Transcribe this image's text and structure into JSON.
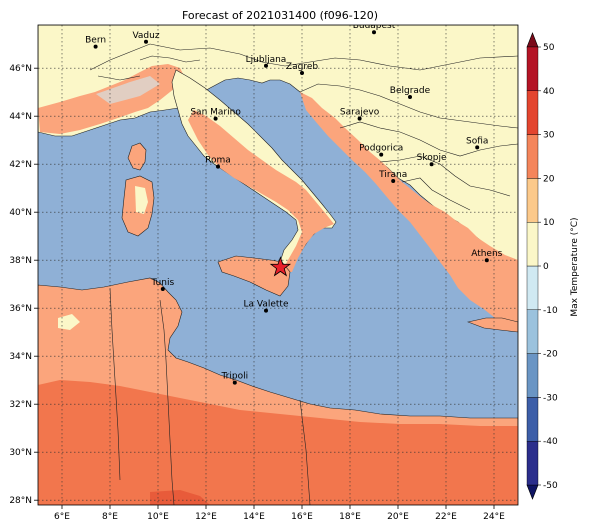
{
  "title": "Forecast of 2021031400 (f096-120)",
  "map": {
    "lon_range": [
      5,
      25
    ],
    "lat_range": [
      27.8,
      47.8
    ],
    "gridlines": true,
    "lon_ticks": [
      "6°E",
      "8°E",
      "10°E",
      "12°E",
      "14°E",
      "16°E",
      "18°E",
      "20°E",
      "22°E",
      "24°E"
    ],
    "lat_ticks": [
      "28°N",
      "30°N",
      "32°N",
      "34°N",
      "36°N",
      "38°N",
      "40°N",
      "42°N",
      "44°N",
      "46°N"
    ],
    "cities": [
      {
        "name": "Bern",
        "lon": 7.4,
        "lat": 46.9
      },
      {
        "name": "Vaduz",
        "lon": 9.5,
        "lat": 47.1
      },
      {
        "name": "Budapest",
        "lon": 19.0,
        "lat": 47.5
      },
      {
        "name": "Ljubljana",
        "lon": 14.5,
        "lat": 46.1
      },
      {
        "name": "Zagreb",
        "lon": 16.0,
        "lat": 45.8
      },
      {
        "name": "San Marino",
        "lon": 12.4,
        "lat": 43.9
      },
      {
        "name": "Belgrade",
        "lon": 20.5,
        "lat": 44.8
      },
      {
        "name": "Sarajevo",
        "lon": 18.4,
        "lat": 43.9
      },
      {
        "name": "Roma",
        "lon": 12.5,
        "lat": 41.9
      },
      {
        "name": "Podgorica",
        "lon": 19.3,
        "lat": 42.4
      },
      {
        "name": "Sofia",
        "lon": 23.3,
        "lat": 42.7
      },
      {
        "name": "Skopje",
        "lon": 21.4,
        "lat": 42.0
      },
      {
        "name": "Tirana",
        "lon": 19.8,
        "lat": 41.3
      },
      {
        "name": "Athens",
        "lon": 23.7,
        "lat": 38.0
      },
      {
        "name": "Tunis",
        "lon": 10.2,
        "lat": 36.8
      },
      {
        "name": "La Valette",
        "lon": 14.5,
        "lat": 35.9
      },
      {
        "name": "Tripoli",
        "lon": 13.2,
        "lat": 32.9
      }
    ],
    "marker": {
      "symbol": "star",
      "lon": 15.1,
      "lat": 37.7,
      "color": "#e8202a"
    }
  },
  "colorbar": {
    "label": "Max Temperature (°C)",
    "ticks": [
      "-50",
      "-40",
      "-30",
      "-20",
      "-10",
      "0",
      "10",
      "20",
      "30",
      "40",
      "50"
    ],
    "levels": [
      -50,
      -40,
      -30,
      -20,
      -10,
      0,
      10,
      20,
      30,
      40,
      50
    ],
    "colors": [
      "#2b2e8c",
      "#3c5ea8",
      "#6a95c4",
      "#9bc2dd",
      "#d0e9f2",
      "#fbf7c8",
      "#fcc98a",
      "#f4855b",
      "#e3452f",
      "#b41426"
    ]
  },
  "fill_colors": {
    "sea": "#8fb0d6",
    "cool_land": "#fbf7c8",
    "warm_land": "#fba57c",
    "hot_land": "#f2764d",
    "very_hot": "#e85b3a"
  }
}
